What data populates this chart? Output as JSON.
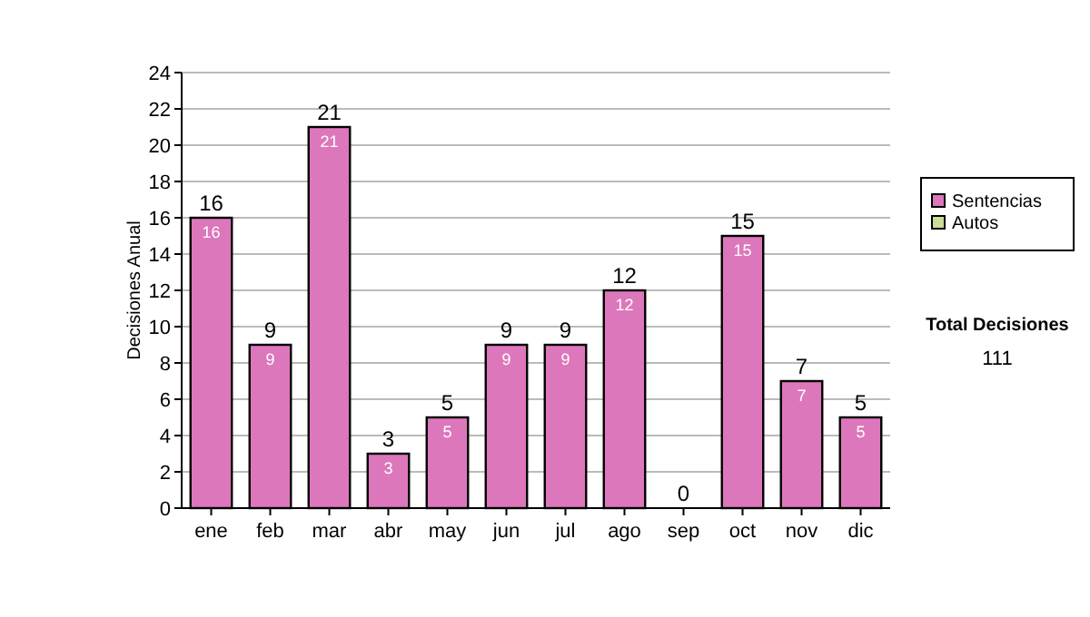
{
  "chart_data": {
    "type": "bar",
    "ylabel": "Decisiones Anual",
    "categories": [
      "ene",
      "feb",
      "mar",
      "abr",
      "may",
      "jun",
      "jul",
      "ago",
      "sep",
      "oct",
      "nov",
      "dic"
    ],
    "stacked": true,
    "series": [
      {
        "name": "Sentencias",
        "color": "#dd77bb",
        "values": [
          16,
          9,
          21,
          3,
          5,
          9,
          9,
          12,
          0,
          15,
          7,
          5
        ],
        "value_labels": [
          "16",
          "9",
          "21",
          "3",
          "5",
          "9",
          "9",
          "12",
          null,
          "15",
          "7",
          "5"
        ]
      },
      {
        "name": "Autos",
        "color": "#ccdd99",
        "values": [
          0,
          0,
          0,
          0,
          0,
          0,
          0,
          0,
          0,
          0,
          0,
          0
        ]
      }
    ],
    "totals": [
      "16",
      "9",
      "21",
      "3",
      "5",
      "9",
      "9",
      "12",
      "0",
      "15",
      "7",
      "5"
    ],
    "ylim": [
      0,
      24
    ],
    "yticks": [
      0,
      2,
      4,
      6,
      8,
      10,
      12,
      14,
      16,
      18,
      20,
      22,
      24
    ],
    "grid": "y",
    "legend": "right",
    "annotations": [
      "Total Decisiones",
      "111"
    ]
  }
}
